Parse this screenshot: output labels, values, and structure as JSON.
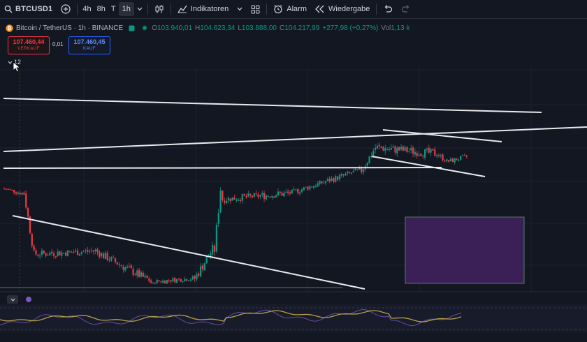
{
  "toolbar": {
    "symbol": "BTCUSD1",
    "intervals": [
      "4h",
      "8h",
      "T",
      "1h"
    ],
    "active_interval": "1h",
    "indicators_label": "Indikatoren",
    "alarm_label": "Alarm",
    "replay_label": "Wiedergabe"
  },
  "legend": {
    "pair": "Bitcoin / TetherUS · 1h · BINANCE",
    "o_label": "O",
    "o": "103.940,01",
    "h_label": "H",
    "h": "104.623,34",
    "l_label": "L",
    "l": "103.888,00",
    "c_label": "C",
    "c": "104.217,99",
    "change": "+277,98 (+0,27%)",
    "vol_label": "Vol",
    "vol": "1,13 k"
  },
  "trade": {
    "sell_price": "107.460,44",
    "sell_label": "VERKAUF",
    "spread": "0,01",
    "buy_price": "107.460,45",
    "buy_label": "KAUF"
  },
  "collapse_count": "12",
  "colors": {
    "background": "#131722",
    "up": "#089981",
    "down": "#f23645",
    "trendline": "#e8e8ec",
    "rectangle_fill": "#3b1f57",
    "rectangle_border": "#5a7a66",
    "rsi_line": "#b7a04a",
    "rsi_line2": "#7e57c2"
  },
  "icons": {
    "search": "search-icon",
    "add": "plus-circle-icon",
    "chevron": "chevron-down-icon",
    "bar_style": "candles-icon",
    "indicators": "indicators-icon",
    "templates": "templates-grid-icon",
    "alarm": "alarm-clock-icon",
    "replay": "replay-icon",
    "undo": "undo-icon",
    "redo": "redo-icon"
  },
  "chart_data": {
    "type": "candlestick",
    "seed": 7,
    "segments": [
      {
        "count": 10,
        "from": 0.65,
        "to": 0.62,
        "vol": 0.02
      },
      {
        "count": 6,
        "from": 0.62,
        "to": 0.22,
        "vol": 0.035
      },
      {
        "count": 30,
        "from": 0.22,
        "to": 0.24,
        "vol": 0.03
      },
      {
        "count": 26,
        "from": 0.24,
        "to": 0.06,
        "vol": 0.035
      },
      {
        "count": 4,
        "from": 0.06,
        "to": 0.02,
        "vol": 0.02
      },
      {
        "count": 20,
        "from": 0.04,
        "to": 0.06,
        "vol": 0.02
      },
      {
        "count": 10,
        "from": 0.06,
        "to": 0.25,
        "vol": 0.04
      },
      {
        "count": 4,
        "from": 0.25,
        "to": 0.65,
        "vol": 0.05
      },
      {
        "count": 34,
        "from": 0.58,
        "to": 0.62,
        "vol": 0.03
      },
      {
        "count": 36,
        "from": 0.62,
        "to": 0.77,
        "vol": 0.025
      },
      {
        "count": 8,
        "from": 0.77,
        "to": 0.92,
        "vol": 0.035
      },
      {
        "count": 30,
        "from": 0.92,
        "to": 0.88,
        "vol": 0.035
      },
      {
        "count": 6,
        "from": 0.88,
        "to": 0.83,
        "vol": 0.02
      },
      {
        "count": 10,
        "from": 0.83,
        "to": 0.86,
        "vol": 0.02
      }
    ]
  }
}
